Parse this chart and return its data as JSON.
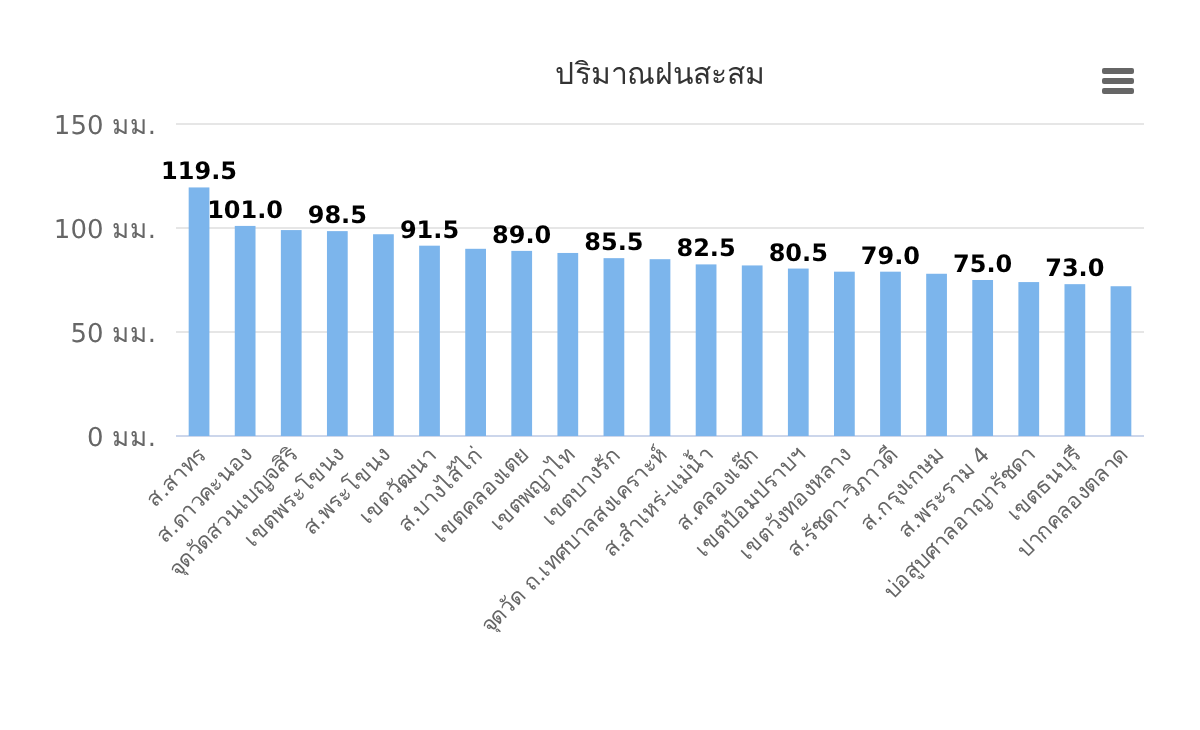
{
  "chart_data": {
    "type": "bar",
    "title": "ปริมาณฝนสะสม",
    "categories": [
      "ส.สาทร",
      "ส.ดาวคะนอง",
      "จุดวัดสวนเบญจสิริ",
      "เขตพระโขนง",
      "ส.พระโขนง",
      "เขตวัฒนา",
      "ส.บางไส้ไก่",
      "เขตคลองเตย",
      "เขตพญาไท",
      "เขตบางรัก",
      "จุดวัด ถ.เทศบาลสงเคราะห์",
      "ส.สำเหร่-แม่น้ำ",
      "ส.คลองเจ๊ก",
      "เขตป้อมปราบฯ",
      "เขตวังทองหลาง",
      "ส.รัชดา-วิภาวดี",
      "ส.กรุงเกษม",
      "ส.พระราม 4",
      "บ่อสูบศาลอาญารัชดา",
      "เขตธนบุรี",
      "ปากคลองตลาด"
    ],
    "values": [
      119.5,
      101.0,
      99,
      98.5,
      97,
      91.5,
      90,
      89.0,
      88,
      85.5,
      85,
      82.5,
      82,
      80.5,
      79,
      79.0,
      78,
      75.0,
      74,
      73.0,
      72
    ],
    "value_labels": [
      "119.5",
      "101.0",
      null,
      "98.5",
      null,
      "91.5",
      null,
      "89.0",
      null,
      "85.5",
      null,
      "82.5",
      null,
      "80.5",
      null,
      "79.0",
      null,
      "75.0",
      null,
      "73.0",
      null
    ],
    "color": "#7cb5ec",
    "ylim": [
      0,
      150
    ],
    "yticks": [
      {
        "value": 0,
        "label": "0 มม."
      },
      {
        "value": 50,
        "label": "50 มม."
      },
      {
        "value": 100,
        "label": "100 มม."
      },
      {
        "value": 150,
        "label": "150 มม."
      }
    ],
    "grid": "y"
  }
}
